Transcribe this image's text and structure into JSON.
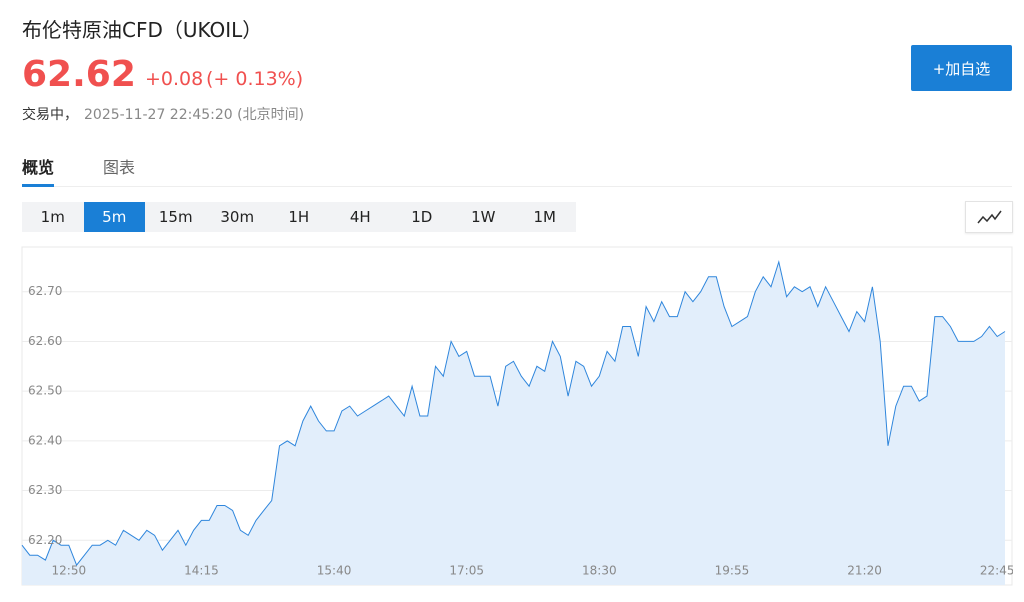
{
  "header": {
    "title": "布伦特原油CFD（UKOIL）",
    "price": "62.62",
    "change": "+0.08",
    "change_percent": "(+ 0.13%)",
    "status": "交易中，",
    "timestamp": "2025-11-27 22:45:20 (北京时间)",
    "watch_button": "+加自选"
  },
  "tabs": {
    "items": [
      "概览",
      "图表"
    ],
    "active": 0
  },
  "intervals": {
    "options": [
      "1m",
      "5m",
      "15m",
      "30m",
      "1H",
      "4H",
      "1D",
      "1W",
      "1M"
    ],
    "selected": 1
  },
  "chart_data": {
    "type": "area",
    "categories": [
      null,
      null,
      null,
      null,
      null,
      null,
      "12:50",
      null,
      null,
      null,
      null,
      null,
      null,
      null,
      null,
      null,
      null,
      null,
      null,
      null,
      null,
      null,
      null,
      "14:15",
      null,
      null,
      null,
      null,
      null,
      null,
      null,
      null,
      null,
      null,
      null,
      null,
      null,
      null,
      null,
      null,
      "15:40",
      null,
      null,
      null,
      null,
      null,
      null,
      null,
      null,
      null,
      null,
      null,
      null,
      null,
      null,
      null,
      null,
      "17:05",
      null,
      null,
      null,
      null,
      null,
      null,
      null,
      null,
      null,
      null,
      null,
      null,
      null,
      null,
      null,
      null,
      "18:30",
      null,
      null,
      null,
      null,
      null,
      null,
      null,
      null,
      null,
      null,
      null,
      null,
      null,
      null,
      null,
      null,
      "19:55",
      null,
      null,
      null,
      null,
      null,
      null,
      null,
      null,
      null,
      null,
      null,
      null,
      null,
      null,
      null,
      null,
      "21:20",
      null,
      null,
      null,
      null,
      null,
      null,
      null,
      null,
      null,
      null,
      null,
      null,
      null,
      null,
      null,
      null,
      "22:45",
      null
    ],
    "series": [
      {
        "color": "#2f86dc",
        "fill": "#e2eefb",
        "values": [
          62.19,
          62.17,
          62.17,
          62.16,
          62.2,
          62.19,
          62.19,
          62.15,
          62.17,
          62.19,
          62.19,
          62.2,
          62.19,
          62.22,
          62.21,
          62.2,
          62.22,
          62.21,
          62.18,
          62.2,
          62.22,
          62.19,
          62.22,
          62.24,
          62.24,
          62.27,
          62.27,
          62.26,
          62.22,
          62.21,
          62.24,
          62.26,
          62.28,
          62.39,
          62.4,
          62.39,
          62.44,
          62.47,
          62.44,
          62.42,
          62.42,
          62.46,
          62.47,
          62.45,
          62.46,
          62.47,
          62.48,
          62.49,
          62.47,
          62.45,
          62.51,
          62.45,
          62.45,
          62.55,
          62.53,
          62.6,
          62.57,
          62.58,
          62.53,
          62.53,
          62.53,
          62.47,
          62.55,
          62.56,
          62.53,
          62.51,
          62.55,
          62.54,
          62.6,
          62.57,
          62.49,
          62.56,
          62.55,
          62.51,
          62.53,
          62.58,
          62.56,
          62.63,
          62.63,
          62.57,
          62.67,
          62.64,
          62.68,
          62.65,
          62.65,
          62.7,
          62.68,
          62.7,
          62.73,
          62.73,
          62.67,
          62.63,
          62.64,
          62.65,
          62.7,
          62.73,
          62.71,
          62.76,
          62.69,
          62.71,
          62.7,
          62.71,
          62.67,
          62.71,
          62.68,
          62.65,
          62.62,
          62.66,
          62.64,
          62.71,
          62.6,
          62.39,
          62.47,
          62.51,
          62.51,
          62.48,
          62.49,
          62.65,
          62.65,
          62.63,
          62.6,
          62.6,
          62.6,
          62.61,
          62.63,
          62.61,
          62.62
        ]
      }
    ],
    "ylim": [
      62.11,
      62.79
    ],
    "yticks": [
      {
        "value": 62.2,
        "label": "62.20"
      },
      {
        "value": 62.3,
        "label": "62.30"
      },
      {
        "value": 62.4,
        "label": "62.40"
      },
      {
        "value": 62.5,
        "label": "62.50"
      },
      {
        "value": 62.6,
        "label": "62.60"
      },
      {
        "value": 62.7,
        "label": "62.70"
      }
    ],
    "grid": true
  }
}
